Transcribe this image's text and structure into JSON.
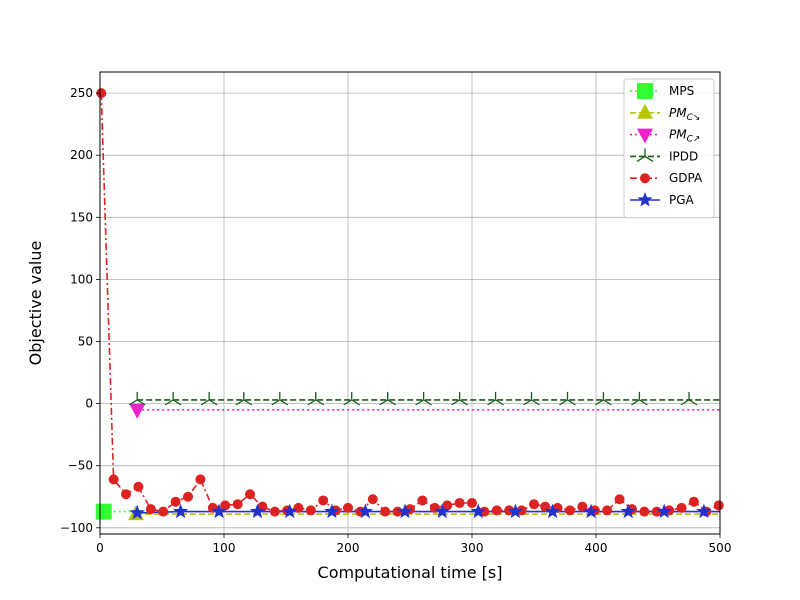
{
  "chart_data": {
    "type": "line",
    "title": "",
    "xlabel": "Computational time [s]",
    "ylabel": "Objective value",
    "xlim": [
      0,
      500
    ],
    "ylim": [
      -105,
      267
    ],
    "xticks": [
      0,
      100,
      200,
      300,
      400,
      500
    ],
    "yticks": [
      -100,
      -50,
      0,
      50,
      100,
      150,
      200,
      250
    ],
    "xtick_labels": [
      "0",
      "100",
      "200",
      "300",
      "400",
      "500"
    ],
    "ytick_labels": [
      "−100",
      "−50",
      "0",
      "50",
      "100",
      "150",
      "200",
      "250"
    ],
    "grid": true,
    "legend_position": "top-right",
    "series": [
      {
        "name": "MPS",
        "color": "#33ff33",
        "marker": "square",
        "linestyle": "dotted",
        "x": [
          3,
          30
        ],
        "y": [
          -87,
          -87
        ],
        "marker_x": [
          3
        ],
        "marker_y": [
          -87
        ]
      },
      {
        "name": "PMC↘",
        "name_base": "PM",
        "name_sub": "C",
        "name_arrow": "↘",
        "color": "#b5c800",
        "marker": "triangle-up",
        "linestyle": "dashed",
        "x": [
          29,
          500
        ],
        "y": [
          -89,
          -89
        ],
        "marker_x": [
          29
        ],
        "marker_y": [
          -89
        ]
      },
      {
        "name": "PMC↗",
        "name_base": "PM",
        "name_sub": "C",
        "name_arrow": "↗",
        "color": "#ee22cc",
        "marker": "triangle-down",
        "linestyle": "dotted",
        "x": [
          30,
          500
        ],
        "y": [
          -5,
          -5
        ],
        "marker_x": [
          30
        ],
        "marker_y": [
          -5
        ]
      },
      {
        "name": "IPDD",
        "color": "#1a5c1a",
        "marker": "tri",
        "linestyle": "dashed",
        "x": [
          30,
          500
        ],
        "y": [
          3,
          3
        ],
        "marker_x": [
          30,
          59,
          88,
          116,
          145,
          174,
          203,
          232,
          261,
          290,
          319,
          348,
          377,
          406,
          435,
          475
        ],
        "marker_y": [
          3,
          3,
          3,
          3,
          3,
          3,
          3,
          3,
          3,
          3,
          3,
          3,
          3,
          3,
          3,
          3
        ]
      },
      {
        "name": "GDPA",
        "color": "#dd2222",
        "marker": "circle",
        "linestyle": "dashdot",
        "x": [
          1,
          11,
          21,
          31,
          41,
          51,
          61,
          71,
          81,
          91,
          101,
          111,
          121,
          131,
          141,
          151,
          160,
          170,
          180,
          190,
          200,
          210,
          220,
          230,
          240,
          250,
          260,
          270,
          280,
          290,
          300,
          310,
          320,
          330,
          340,
          350,
          359,
          369,
          379,
          389,
          399,
          409,
          419,
          429,
          439,
          449,
          459,
          469,
          479,
          489,
          499
        ],
        "y": [
          250,
          -61,
          -73,
          -67,
          -85,
          -87,
          -79,
          -75,
          -61,
          -84,
          -82,
          -81,
          -73,
          -83,
          -87,
          -86,
          -84,
          -86,
          -78,
          -86,
          -84,
          -87,
          -77,
          -87,
          -87,
          -85,
          -78,
          -84,
          -82,
          -80,
          -80,
          -87,
          -86,
          -86,
          -86,
          -81,
          -83,
          -84,
          -86,
          -83,
          -86,
          -86,
          -77,
          -85,
          -87,
          -87,
          -86,
          -84,
          -79,
          -87,
          -82
        ]
      },
      {
        "name": "PGA",
        "color": "#2233cc",
        "marker": "star",
        "linestyle": "solid",
        "x": [
          30,
          65,
          96,
          127,
          153,
          187,
          214,
          246,
          276,
          305,
          335,
          365,
          396,
          426,
          455,
          487,
          500
        ],
        "y": [
          -88,
          -87,
          -87,
          -87,
          -87,
          -87,
          -87,
          -87,
          -87,
          -87,
          -87,
          -87,
          -87,
          -87,
          -87,
          -87,
          -87
        ],
        "marker_x": [
          30,
          65,
          96,
          127,
          153,
          187,
          214,
          246,
          276,
          305,
          335,
          365,
          396,
          426,
          455,
          487
        ],
        "marker_y": [
          -88,
          -87,
          -87,
          -87,
          -87,
          -87,
          -87,
          -87,
          -87,
          -87,
          -87,
          -87,
          -87,
          -87,
          -87,
          -87
        ]
      }
    ]
  }
}
